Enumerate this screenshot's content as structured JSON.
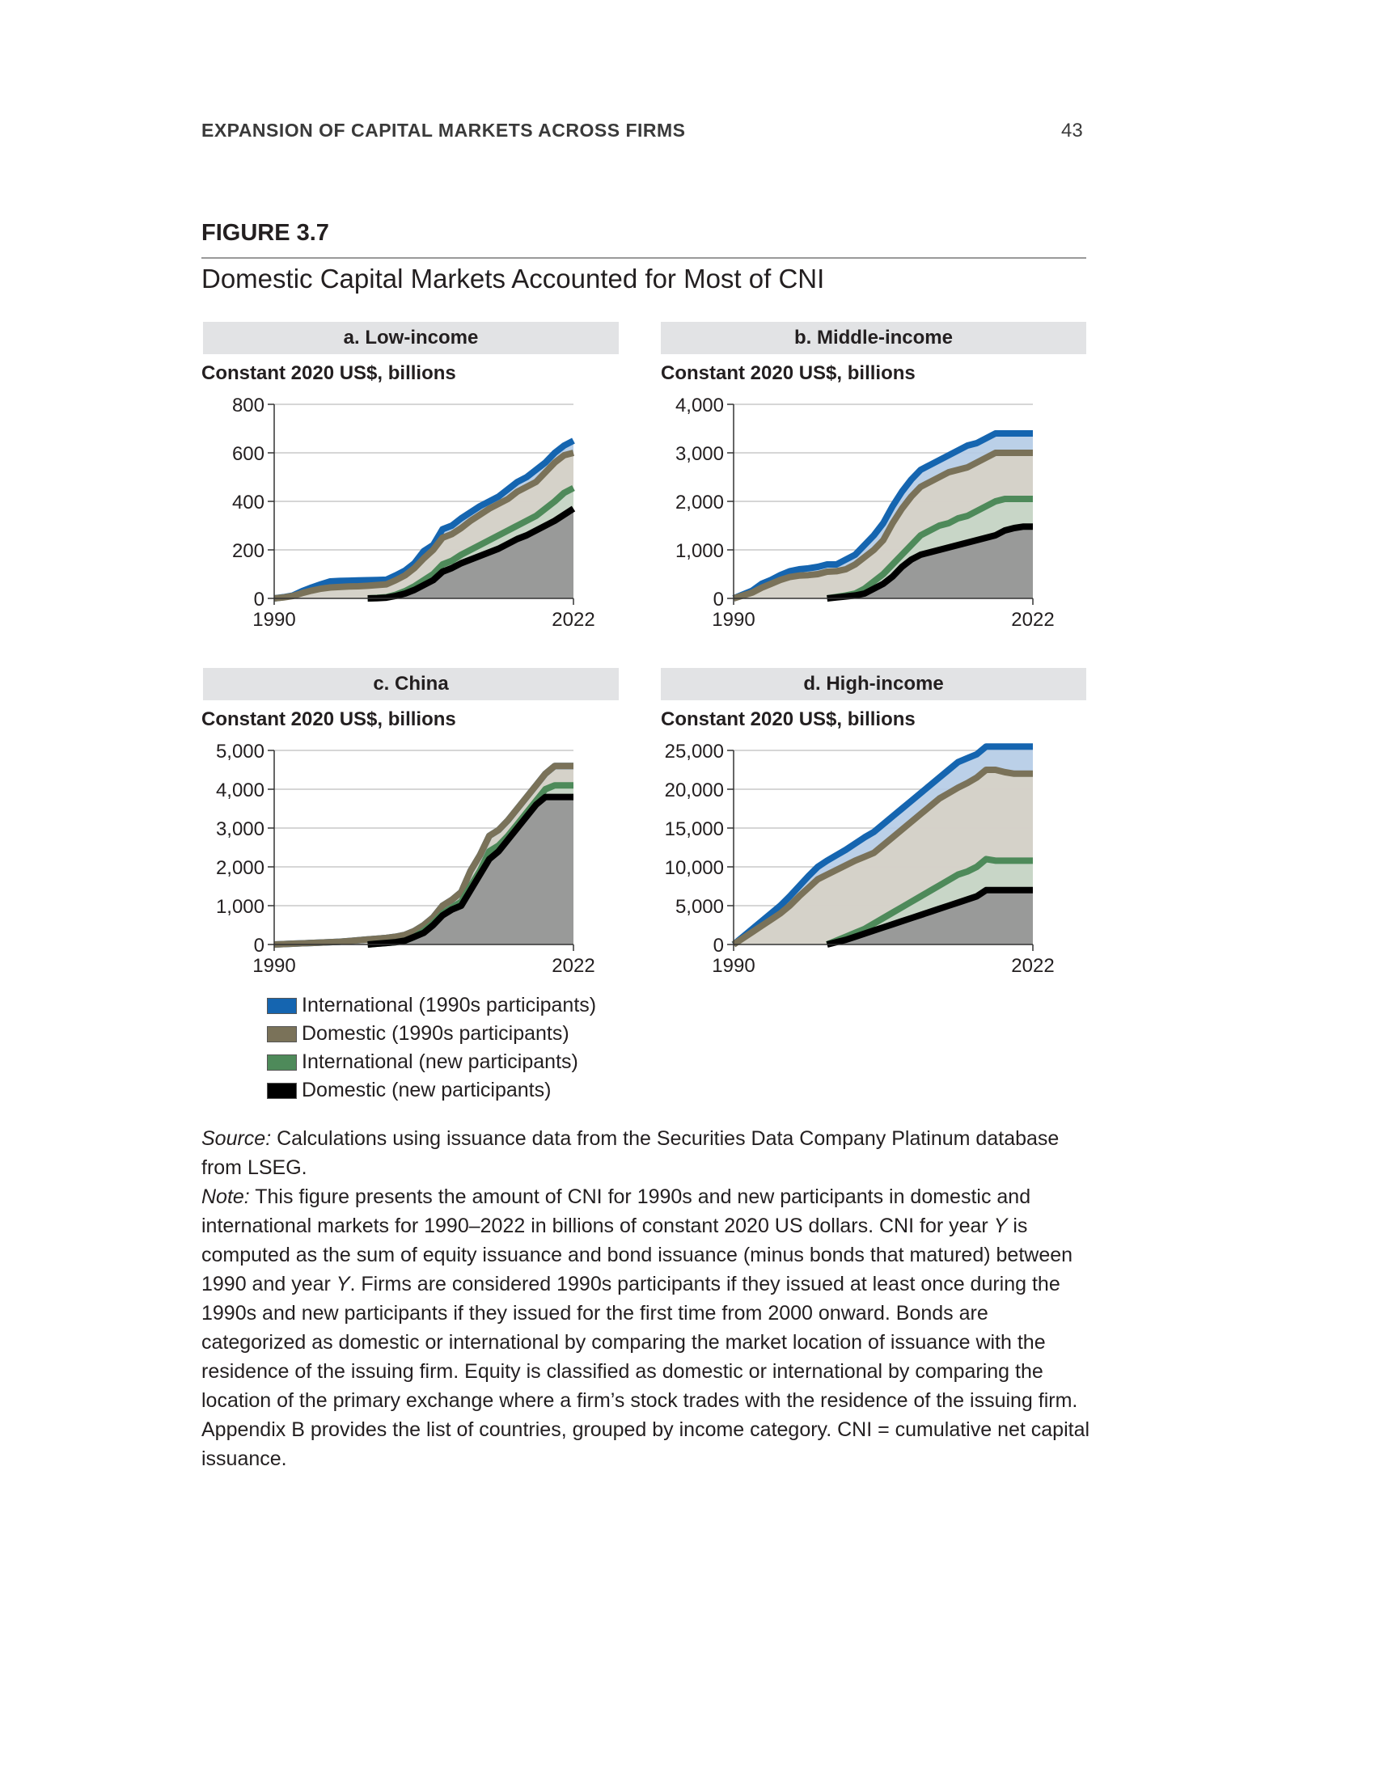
{
  "header": {
    "running_head": "EXPANSION OF CAPITAL MARKETS ACROSS FIRMS",
    "page_number": "43"
  },
  "figure": {
    "label": "FIGURE 3.7",
    "title": "Domestic Capital Markets Accounted for Most of CNI"
  },
  "legend": [
    {
      "label": "International (1990s participants)",
      "color": "#1565b0"
    },
    {
      "label": "Domestic (1990s participants)",
      "color": "#7a7259"
    },
    {
      "label": "International (new participants)",
      "color": "#4e8a5a"
    },
    {
      "label": "Domestic (new participants)",
      "color": "#000000"
    }
  ],
  "notes": {
    "source_label": "Source:",
    "source_text": " Calculations using issuance data from the Securities Data Company Platinum database from LSEG.",
    "note_label": "Note:",
    "note_p1": " This figure presents the amount of CNI for 1990s and new participants in domestic and international markets for 1990–2022 in billions of constant 2020 US dollars. CNI for year ",
    "note_y1": "Y",
    "note_p2": " is computed as the sum of equity issuance and bond issuance (minus bonds that matured) between 1990 and year ",
    "note_y2": "Y",
    "note_p3": ". Firms are considered 1990s participants if they issued at least once during the 1990s and new participants if they issued for the first time from 2000 onward. Bonds are categorized as domestic or international by comparing the market location of issuance with the residence of the issuing firm. Equity is classified as domestic or international by comparing the location of the primary exchange where a firm’s stock trades with the residence of the issuing firm. Appendix B provides the list of countries, grouped by income category. CNI = cumulative net capital issuance."
  },
  "chart_data": [
    {
      "type": "area",
      "title": "a. Low-income",
      "ylabel": "Constant 2020 US$, billions",
      "x_ticks": [
        "1990",
        "2022"
      ],
      "ylim": [
        0,
        800
      ],
      "y_ticks": [
        0,
        200,
        400,
        600,
        800
      ],
      "y_tick_labels": [
        "0",
        "200",
        "400",
        "600",
        "800"
      ],
      "grid": true,
      "x": [
        1990,
        1991,
        1992,
        1993,
        1994,
        1995,
        1996,
        1997,
        1998,
        1999,
        2000,
        2001,
        2002,
        2003,
        2004,
        2005,
        2006,
        2007,
        2008,
        2009,
        2010,
        2011,
        2012,
        2013,
        2014,
        2015,
        2016,
        2017,
        2018,
        2019,
        2020,
        2021,
        2022
      ],
      "series": [
        {
          "name": "International (1990s participants)",
          "values": [
            0,
            5,
            12,
            30,
            45,
            58,
            70,
            72,
            73,
            74,
            75,
            76,
            77,
            95,
            115,
            145,
            195,
            220,
            285,
            300,
            330,
            355,
            380,
            400,
            420,
            450,
            480,
            500,
            530,
            560,
            600,
            630,
            650
          ]
        },
        {
          "name": "Domestic (1990s participants)",
          "values": [
            0,
            4,
            10,
            22,
            32,
            40,
            45,
            47,
            49,
            50,
            52,
            55,
            58,
            75,
            95,
            125,
            165,
            200,
            250,
            265,
            290,
            320,
            345,
            370,
            390,
            410,
            440,
            460,
            480,
            520,
            560,
            590,
            600
          ]
        },
        {
          "name": "International (new participants)",
          "values": [
            null,
            null,
            null,
            null,
            null,
            null,
            null,
            null,
            null,
            null,
            0,
            2,
            5,
            15,
            30,
            50,
            75,
            100,
            140,
            155,
            180,
            200,
            220,
            240,
            260,
            280,
            300,
            320,
            340,
            370,
            400,
            435,
            455
          ]
        },
        {
          "name": "Domestic (new participants)",
          "values": [
            null,
            null,
            null,
            null,
            null,
            null,
            null,
            null,
            null,
            null,
            0,
            1,
            3,
            10,
            20,
            35,
            55,
            75,
            110,
            125,
            145,
            160,
            175,
            190,
            205,
            225,
            245,
            260,
            280,
            300,
            320,
            345,
            370
          ]
        }
      ]
    },
    {
      "type": "area",
      "title": "b. Middle-income",
      "ylabel": "Constant 2020 US$, billions",
      "x_ticks": [
        "1990",
        "2022"
      ],
      "ylim": [
        0,
        4000
      ],
      "y_ticks": [
        0,
        1000,
        2000,
        3000,
        4000
      ],
      "y_tick_labels": [
        "0",
        "1,000",
        "2,000",
        "3,000",
        "4,000"
      ],
      "grid": true,
      "x": [
        1990,
        1991,
        1992,
        1993,
        1994,
        1995,
        1996,
        1997,
        1998,
        1999,
        2000,
        2001,
        2002,
        2003,
        2004,
        2005,
        2006,
        2007,
        2008,
        2009,
        2010,
        2011,
        2012,
        2013,
        2014,
        2015,
        2016,
        2017,
        2018,
        2019,
        2020,
        2021,
        2022
      ],
      "series": [
        {
          "name": "International (1990s participants)",
          "values": [
            0,
            80,
            160,
            300,
            380,
            480,
            560,
            600,
            620,
            650,
            700,
            700,
            800,
            900,
            1100,
            1300,
            1550,
            1900,
            2200,
            2450,
            2650,
            2750,
            2850,
            2950,
            3050,
            3150,
            3200,
            3300,
            3400,
            3400,
            3400,
            3400,
            3400
          ]
        },
        {
          "name": "Domestic (1990s participants)",
          "values": [
            0,
            60,
            120,
            220,
            300,
            380,
            440,
            470,
            480,
            500,
            550,
            560,
            600,
            700,
            850,
            1000,
            1200,
            1550,
            1850,
            2100,
            2300,
            2400,
            2500,
            2600,
            2650,
            2700,
            2800,
            2900,
            3000,
            3000,
            3000,
            3000,
            3000
          ]
        },
        {
          "name": "International (new participants)",
          "values": [
            null,
            null,
            null,
            null,
            null,
            null,
            null,
            null,
            null,
            null,
            0,
            30,
            60,
            100,
            200,
            350,
            500,
            700,
            900,
            1100,
            1300,
            1400,
            1500,
            1550,
            1650,
            1700,
            1800,
            1900,
            2000,
            2050,
            2050,
            2050,
            2050
          ]
        },
        {
          "name": "Domestic (new participants)",
          "values": [
            null,
            null,
            null,
            null,
            null,
            null,
            null,
            null,
            null,
            null,
            0,
            20,
            40,
            60,
            100,
            200,
            300,
            450,
            650,
            800,
            900,
            950,
            1000,
            1050,
            1100,
            1150,
            1200,
            1250,
            1300,
            1400,
            1450,
            1480,
            1480
          ]
        }
      ]
    },
    {
      "type": "area",
      "title": "c. China",
      "ylabel": "Constant 2020 US$, billions",
      "x_ticks": [
        "1990",
        "2022"
      ],
      "ylim": [
        0,
        5000
      ],
      "y_ticks": [
        0,
        1000,
        2000,
        3000,
        4000,
        5000
      ],
      "y_tick_labels": [
        "0",
        "1,000",
        "2,000",
        "3,000",
        "4,000",
        "5,000"
      ],
      "grid": true,
      "x": [
        1990,
        1991,
        1992,
        1993,
        1994,
        1995,
        1996,
        1997,
        1998,
        1999,
        2000,
        2001,
        2002,
        2003,
        2004,
        2005,
        2006,
        2007,
        2008,
        2009,
        2010,
        2011,
        2012,
        2013,
        2014,
        2015,
        2016,
        2017,
        2018,
        2019,
        2020,
        2021,
        2022
      ],
      "series": [
        {
          "name": "International (1990s participants)",
          "values": [
            0,
            10,
            20,
            30,
            40,
            50,
            60,
            70,
            90,
            110,
            130,
            150,
            170,
            200,
            250,
            350,
            500,
            700,
            1000,
            1150,
            1350,
            1900,
            2300,
            2800,
            2950,
            3200,
            3500,
            3800,
            4100,
            4400,
            4600,
            4600,
            4600
          ]
        },
        {
          "name": "Domestic (1990s participants)",
          "values": [
            0,
            10,
            20,
            30,
            40,
            50,
            60,
            70,
            90,
            110,
            130,
            150,
            170,
            200,
            250,
            350,
            500,
            700,
            1000,
            1150,
            1350,
            1900,
            2300,
            2800,
            2950,
            3200,
            3500,
            3800,
            4100,
            4400,
            4600,
            4600,
            4600
          ]
        },
        {
          "name": "International (new participants)",
          "values": [
            null,
            null,
            null,
            null,
            null,
            null,
            null,
            null,
            null,
            null,
            0,
            20,
            40,
            60,
            100,
            200,
            350,
            550,
            800,
            950,
            1100,
            1500,
            1900,
            2400,
            2550,
            2800,
            3100,
            3400,
            3700,
            4000,
            4100,
            4100,
            4100
          ]
        },
        {
          "name": "Domestic (new participants)",
          "values": [
            null,
            null,
            null,
            null,
            null,
            null,
            null,
            null,
            null,
            null,
            0,
            20,
            40,
            60,
            100,
            200,
            300,
            500,
            750,
            900,
            1000,
            1400,
            1800,
            2200,
            2400,
            2700,
            3000,
            3300,
            3600,
            3800,
            3800,
            3800,
            3800
          ]
        }
      ]
    },
    {
      "type": "area",
      "title": "d. High-income",
      "ylabel": "Constant 2020 US$, billions",
      "x_ticks": [
        "1990",
        "2022"
      ],
      "ylim": [
        0,
        25000
      ],
      "y_ticks": [
        0,
        5000,
        10000,
        15000,
        20000,
        25000
      ],
      "y_tick_labels": [
        "0",
        "5,000",
        "10,000",
        "15,000",
        "20,000",
        "25,000"
      ],
      "grid": true,
      "x": [
        1990,
        1991,
        1992,
        1993,
        1994,
        1995,
        1996,
        1997,
        1998,
        1999,
        2000,
        2001,
        2002,
        2003,
        2004,
        2005,
        2006,
        2007,
        2008,
        2009,
        2010,
        2011,
        2012,
        2013,
        2014,
        2015,
        2016,
        2017,
        2018,
        2019,
        2020,
        2021,
        2022
      ],
      "series": [
        {
          "name": "International (1990s participants)",
          "values": [
            0,
            1000,
            2000,
            3000,
            4000,
            5000,
            6200,
            7500,
            8800,
            10000,
            10800,
            11500,
            12200,
            13000,
            13800,
            14500,
            15500,
            16500,
            17500,
            18500,
            19500,
            20500,
            21500,
            22500,
            23500,
            24000,
            24500,
            25500,
            25500,
            25500,
            25500,
            25500,
            25500
          ]
        },
        {
          "name": "Domestic (1990s participants)",
          "values": [
            0,
            800,
            1600,
            2400,
            3200,
            4000,
            5000,
            6200,
            7300,
            8400,
            9000,
            9600,
            10200,
            10800,
            11300,
            11800,
            12800,
            13800,
            14800,
            15800,
            16800,
            17800,
            18800,
            19500,
            20200,
            20800,
            21500,
            22500,
            22500,
            22200,
            22000,
            22000,
            22000
          ]
        },
        {
          "name": "International (new participants)",
          "values": [
            null,
            null,
            null,
            null,
            null,
            null,
            null,
            null,
            null,
            null,
            0,
            500,
            1000,
            1500,
            2000,
            2700,
            3400,
            4100,
            4800,
            5500,
            6200,
            6900,
            7600,
            8300,
            9000,
            9400,
            10000,
            11000,
            10800,
            10800,
            10800,
            10800,
            10800
          ]
        },
        {
          "name": "Domestic (new participants)",
          "values": [
            null,
            null,
            null,
            null,
            null,
            null,
            null,
            null,
            null,
            null,
            0,
            300,
            600,
            1000,
            1400,
            1800,
            2200,
            2600,
            3000,
            3400,
            3800,
            4200,
            4600,
            5000,
            5400,
            5800,
            6200,
            7000,
            7000,
            7000,
            7000,
            7000,
            7000
          ]
        }
      ]
    }
  ]
}
